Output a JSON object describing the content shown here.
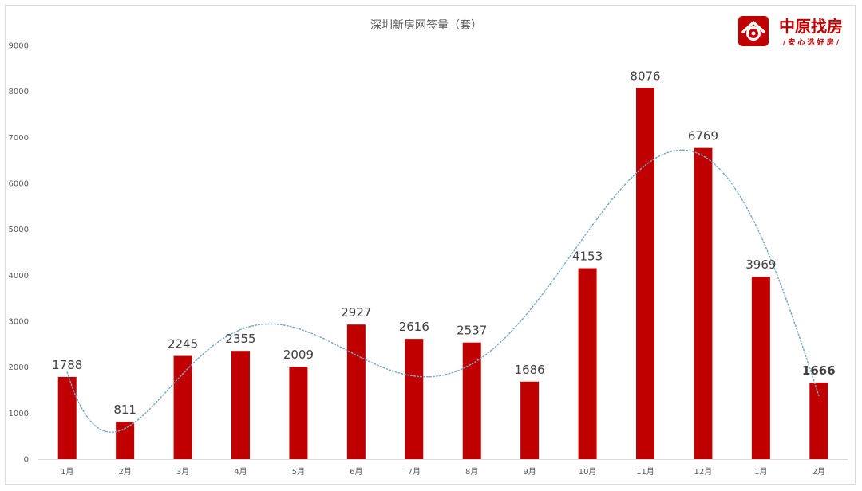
{
  "logo": {
    "name": "中原找房",
    "slogan": "/ 安 心 选 好 房 /",
    "color": "#c00000"
  },
  "chart_data": {
    "type": "bar",
    "title": "深圳新房网签量（套）",
    "categories": [
      "1月",
      "2月",
      "3月",
      "4月",
      "5月",
      "6月",
      "7月",
      "8月",
      "9月",
      "10月",
      "11月",
      "12月",
      "1月",
      "2月"
    ],
    "values": [
      1788,
      811,
      2245,
      2355,
      2009,
      2927,
      2616,
      2537,
      1686,
      4153,
      8076,
      6769,
      3969,
      1666
    ],
    "ylim": [
      0,
      9000
    ],
    "yticks": [
      0,
      1000,
      2000,
      3000,
      4000,
      5000,
      6000,
      7000,
      8000,
      9000
    ],
    "bar_color": "#c00000",
    "trendline": {
      "style": "dotted smoothed",
      "color": "#7aa7c7"
    },
    "grid": false,
    "legend": "none",
    "xlabel": "",
    "ylabel": ""
  }
}
